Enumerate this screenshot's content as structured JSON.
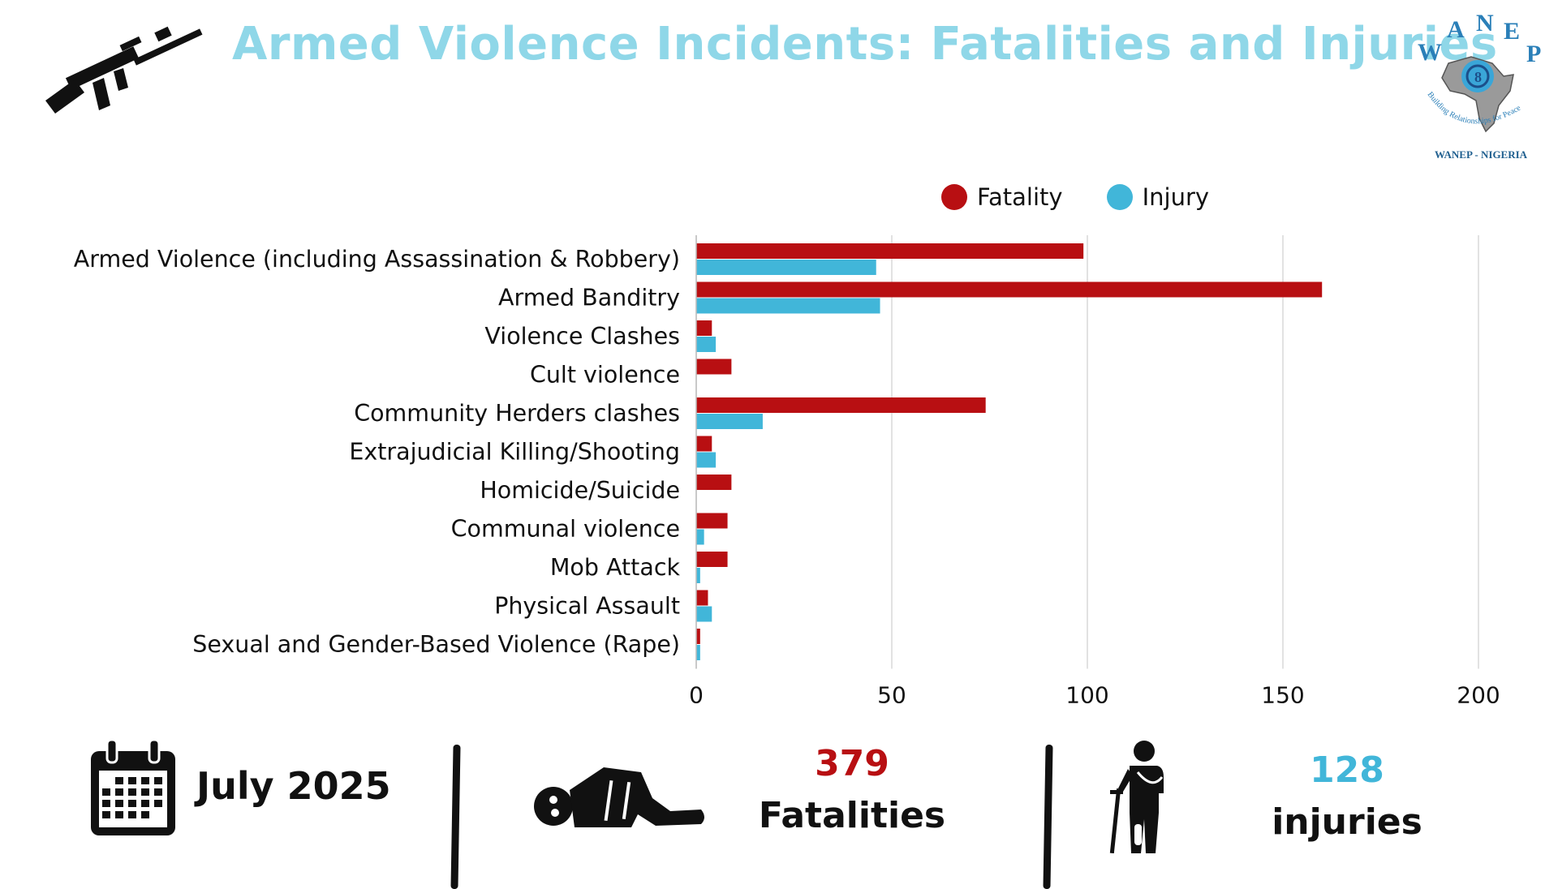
{
  "header": {
    "title": "Armed Violence Incidents: Fatalities and Injuries",
    "logo": {
      "letters": [
        "W",
        "A",
        "N",
        "E",
        "P"
      ],
      "tagline": "Building Relationships for Peace",
      "caption": "WANEP - NIGERIA"
    },
    "icon": "assault-rifle-icon"
  },
  "legend": {
    "fatality_label": "Fatality",
    "injury_label": "Injury"
  },
  "colors": {
    "title": "#8fd7e8",
    "fatality": "#b80f12",
    "injury": "#41b6d9",
    "grid": "#d9d9d9"
  },
  "chart_data": {
    "type": "bar",
    "orientation": "horizontal",
    "categories": [
      "Armed Violence (including Assassination & Robbery)",
      "Armed Banditry",
      "Violence Clashes",
      "Cult violence",
      "Community Herders clashes",
      "Extrajudicial Killing/Shooting",
      "Homicide/Suicide",
      "Communal violence",
      "Mob Attack",
      "Physical Assault",
      "Sexual and Gender-Based Violence (Rape)"
    ],
    "series": [
      {
        "name": "Fatality",
        "values": [
          99,
          160,
          4,
          9,
          74,
          4,
          9,
          8,
          8,
          3,
          1
        ]
      },
      {
        "name": "Injury",
        "values": [
          46,
          47,
          5,
          0,
          17,
          5,
          0,
          2,
          1,
          4,
          1
        ]
      }
    ],
    "xlim": [
      0,
      200
    ],
    "xticks": [
      0,
      50,
      100,
      150,
      200
    ],
    "grid": true,
    "legend_position": "top-right"
  },
  "footer": {
    "period": {
      "label": "July 2025",
      "icon": "calendar-icon"
    },
    "fatalities": {
      "value": "379",
      "label": "Fatalities",
      "icon": "lying-body-icon"
    },
    "injuries": {
      "value": "128",
      "label": "injuries",
      "icon": "injured-person-crutch-icon"
    }
  }
}
